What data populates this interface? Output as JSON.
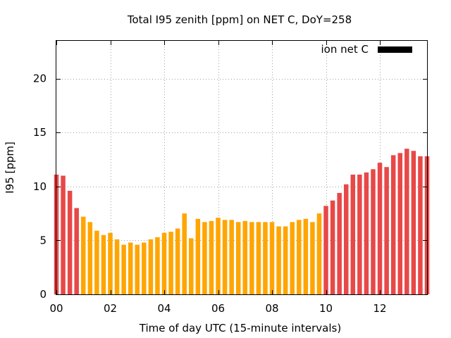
{
  "chart_data": {
    "type": "bar",
    "title": "Total I95 zenith [ppm] on NET C, DoY=258",
    "xlabel": "Time of day UTC (15-minute intervals)",
    "ylabel": "I95 [ppm]",
    "legend": {
      "label": "ion net C",
      "placement": "top-right"
    },
    "xlim": [
      0,
      13.75
    ],
    "ylim": [
      0,
      23.5
    ],
    "x_ticks": [
      {
        "value": 0,
        "label": "00"
      },
      {
        "value": 2,
        "label": "02"
      },
      {
        "value": 4,
        "label": "04"
      },
      {
        "value": 6,
        "label": "06"
      },
      {
        "value": 8,
        "label": "08"
      },
      {
        "value": 10,
        "label": "10"
      },
      {
        "value": 12,
        "label": "12"
      }
    ],
    "y_ticks": [
      {
        "value": 0,
        "label": "0"
      },
      {
        "value": 5,
        "label": "5"
      },
      {
        "value": 10,
        "label": "10"
      },
      {
        "value": 15,
        "label": "15"
      },
      {
        "value": 20,
        "label": "20"
      }
    ],
    "grid": true,
    "interval_hours": 0.25,
    "colors": {
      "high": "#e84848",
      "low": "#ffa500",
      "legend_swatch": "#000000",
      "grid": "#a0a0a0"
    },
    "values": [
      11.1,
      11.0,
      9.6,
      8.0,
      7.2,
      6.7,
      5.9,
      5.5,
      5.7,
      5.1,
      4.6,
      4.8,
      4.6,
      4.8,
      5.1,
      5.3,
      5.7,
      5.8,
      6.1,
      7.5,
      5.2,
      7.0,
      6.7,
      6.8,
      7.1,
      6.9,
      6.9,
      6.7,
      6.8,
      6.7,
      6.7,
      6.7,
      6.7,
      6.3,
      6.3,
      6.7,
      6.9,
      7.0,
      6.7,
      7.5,
      8.2,
      8.7,
      9.4,
      10.2,
      11.1,
      11.1,
      11.3,
      11.6,
      12.2,
      11.8,
      12.9,
      13.1,
      13.5,
      13.3,
      12.8,
      12.8
    ],
    "bar_colors": [
      "high",
      "high",
      "high",
      "high",
      "low",
      "low",
      "low",
      "low",
      "low",
      "low",
      "low",
      "low",
      "low",
      "low",
      "low",
      "low",
      "low",
      "low",
      "low",
      "low",
      "low",
      "low",
      "low",
      "low",
      "low",
      "low",
      "low",
      "low",
      "low",
      "low",
      "low",
      "low",
      "low",
      "low",
      "low",
      "low",
      "low",
      "low",
      "low",
      "low",
      "high",
      "high",
      "high",
      "high",
      "high",
      "high",
      "high",
      "high",
      "high",
      "high",
      "high",
      "high",
      "high",
      "high",
      "high",
      "high"
    ]
  }
}
